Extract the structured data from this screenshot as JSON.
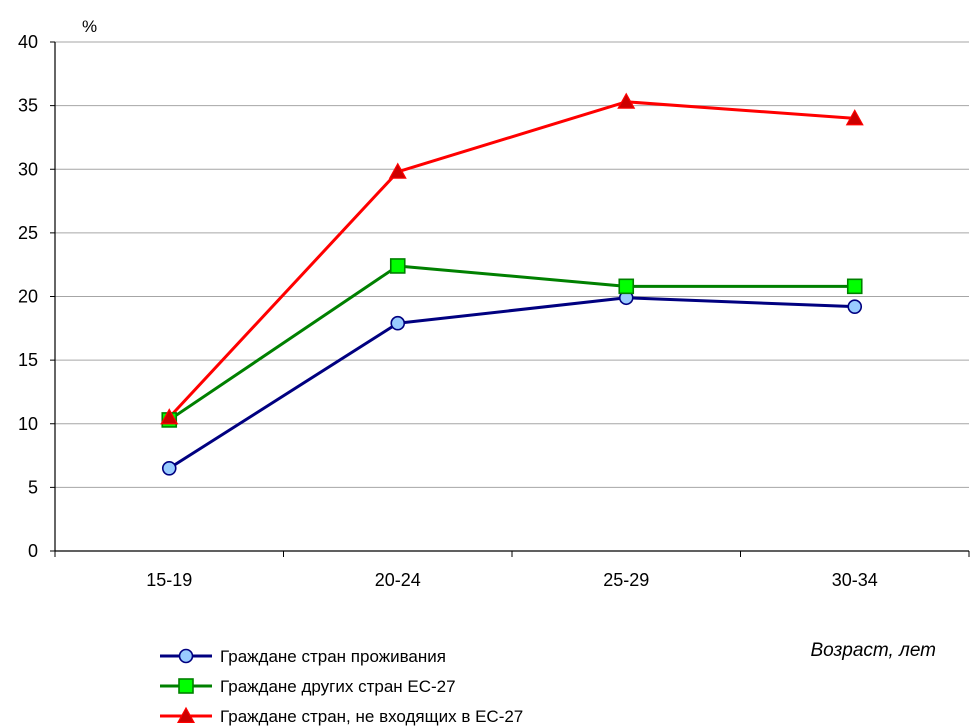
{
  "chart_data": {
    "type": "line",
    "title": "",
    "ylabel": "%",
    "xlabel": "Возраст, лет",
    "categories": [
      "15-19",
      "20-24",
      "25-29",
      "30-34"
    ],
    "ylim": [
      0,
      40
    ],
    "yticks": [
      0,
      5,
      10,
      15,
      20,
      25,
      30,
      35,
      40
    ],
    "grid": true,
    "legend_position": "bottom-left",
    "series": [
      {
        "name": "Граждане стран проживания",
        "values": [
          6.5,
          17.9,
          19.9,
          19.2
        ],
        "color": "#000080",
        "marker": "circle",
        "marker_fill": "#99ccff"
      },
      {
        "name": "Граждане других стран ЕС-27",
        "values": [
          10.3,
          22.4,
          20.8,
          20.8
        ],
        "color": "#008000",
        "marker": "square",
        "marker_fill": "#00ff00"
      },
      {
        "name": "Граждане стран, не входящих в ЕС-27",
        "values": [
          10.5,
          29.8,
          35.3,
          34.0
        ],
        "color": "#ff0000",
        "marker": "triangle",
        "marker_fill": "#cc0000"
      }
    ]
  }
}
